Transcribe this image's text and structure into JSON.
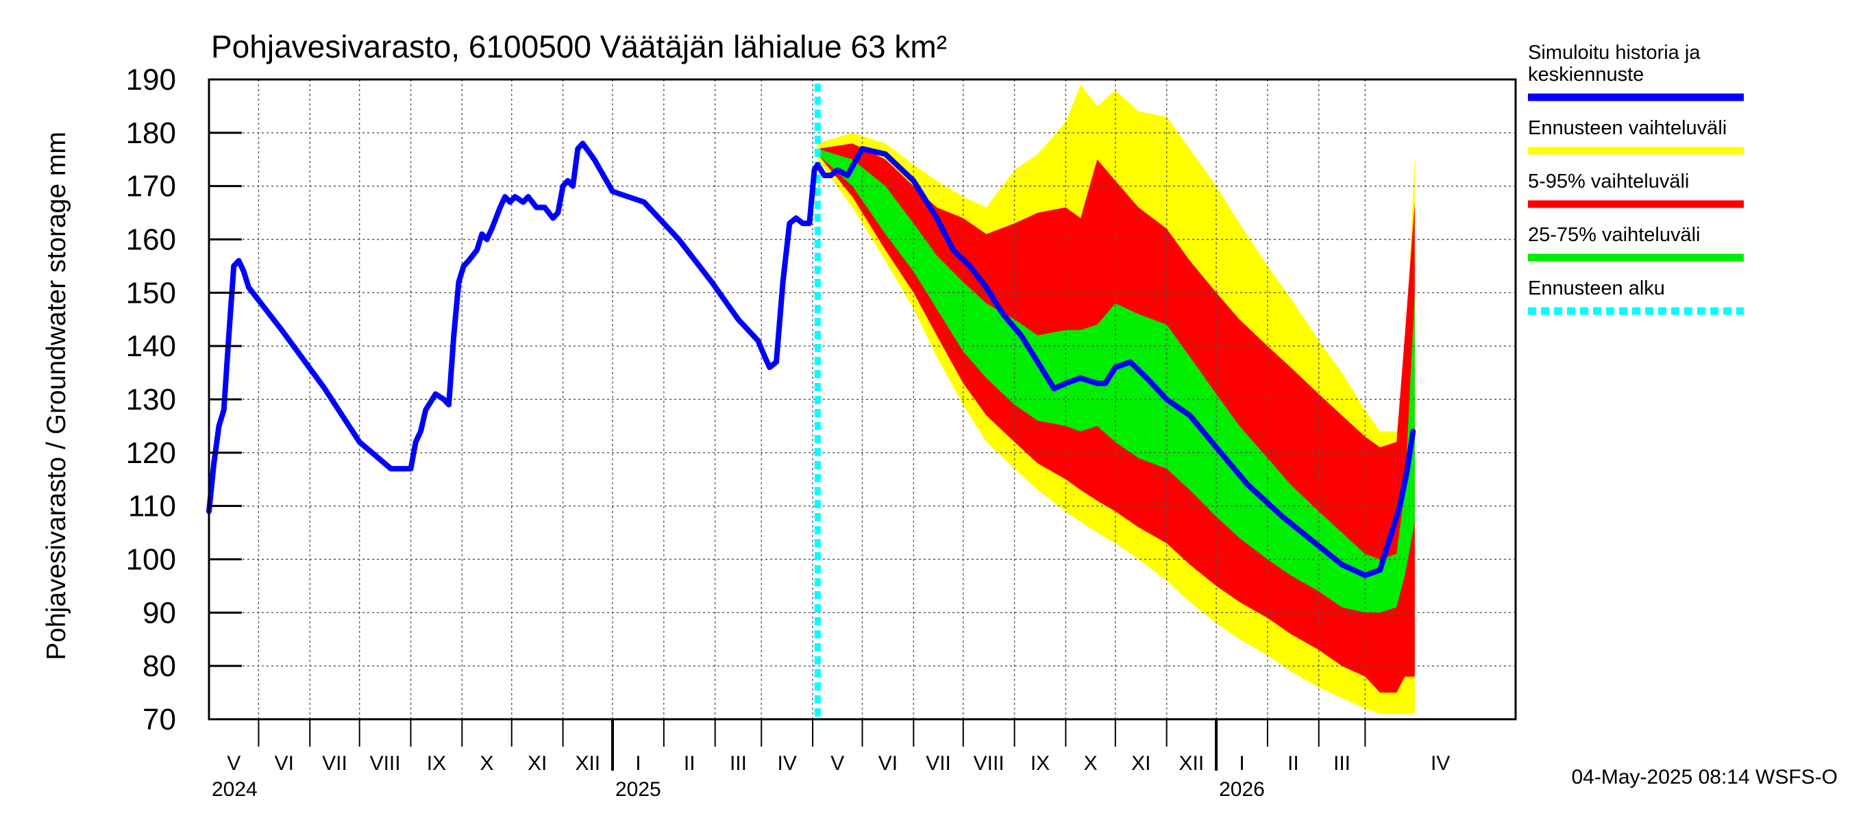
{
  "chart_data": {
    "type": "area",
    "title": "Pohjavesivarasto, 6100500 Väätäjän lähialue 63 km²",
    "ylabel": "Pohjavesivarasto / Groundwater storage   mm",
    "xlabel": "",
    "ylim": [
      70,
      190
    ],
    "yticks": [
      70,
      80,
      90,
      100,
      110,
      120,
      130,
      140,
      150,
      160,
      170,
      180,
      190
    ],
    "grid": true,
    "legend_position": "right",
    "xlim": [
      "2024-04-01",
      "2026-05-31"
    ],
    "months": [
      {
        "label": "V",
        "start": "2024-04-01"
      },
      {
        "label": "VI",
        "start": "2024-05-01"
      },
      {
        "label": "VII",
        "start": "2024-06-01"
      },
      {
        "label": "VIII",
        "start": "2024-07-01"
      },
      {
        "label": "IX",
        "start": "2024-08-01"
      },
      {
        "label": "X",
        "start": "2024-09-01"
      },
      {
        "label": "XI",
        "start": "2024-10-01"
      },
      {
        "label": "XII",
        "start": "2024-11-01"
      },
      {
        "label": "I",
        "start": "2024-12-01"
      },
      {
        "label": "II",
        "start": "2025-01-01"
      },
      {
        "label": "III",
        "start": "2025-02-01"
      },
      {
        "label": "IV",
        "start": "2025-03-01"
      },
      {
        "label": "V",
        "start": "2025-04-01"
      },
      {
        "label": "VI",
        "start": "2025-05-01"
      },
      {
        "label": "VII",
        "start": "2025-06-01"
      },
      {
        "label": "VIII",
        "start": "2025-07-01"
      },
      {
        "label": "IX",
        "start": "2025-08-01"
      },
      {
        "label": "X",
        "start": "2025-09-01"
      },
      {
        "label": "XI",
        "start": "2025-10-01"
      },
      {
        "label": "XII",
        "start": "2025-11-01"
      },
      {
        "label": "I",
        "start": "2025-12-01"
      },
      {
        "label": "II",
        "start": "2026-01-01"
      },
      {
        "label": "III",
        "start": "2026-02-01"
      },
      {
        "label": "IV",
        "start": "2026-03-01"
      }
    ],
    "year_boundaries": [
      "2024-12-01",
      "2025-12-01"
    ],
    "years": [
      {
        "label": "2024",
        "at": "2024-04-01"
      },
      {
        "label": "2025",
        "at": "2024-12-01"
      },
      {
        "label": "2026",
        "at": "2025-12-01"
      }
    ],
    "forecast_start": "2025-04-04",
    "series": [
      {
        "name": "Simuloitu historia ja keskiennuste",
        "color": "#0000ff",
        "kind": "line",
        "x": [
          "2024-04-01",
          "2024-04-04",
          "2024-04-07",
          "2024-04-10",
          "2024-04-13",
          "2024-04-16",
          "2024-04-19",
          "2024-04-22",
          "2024-04-25",
          "2024-05-15",
          "2024-06-10",
          "2024-07-01",
          "2024-07-20",
          "2024-08-01",
          "2024-08-04",
          "2024-08-07",
          "2024-08-10",
          "2024-08-16",
          "2024-08-21",
          "2024-08-24",
          "2024-08-27",
          "2024-08-30",
          "2024-09-02",
          "2024-09-05",
          "2024-09-10",
          "2024-09-13",
          "2024-09-16",
          "2024-09-19",
          "2024-09-24",
          "2024-09-27",
          "2024-09-30",
          "2024-10-03",
          "2024-10-08",
          "2024-10-11",
          "2024-10-16",
          "2024-10-21",
          "2024-10-26",
          "2024-10-29",
          "2024-11-01",
          "2024-11-04",
          "2024-11-07",
          "2024-11-10",
          "2024-11-13",
          "2024-11-20",
          "2024-12-01",
          "2024-12-20",
          "2025-01-10",
          "2025-01-30",
          "2025-02-15",
          "2025-02-27",
          "2025-03-03",
          "2025-03-06",
          "2025-03-10",
          "2025-03-14",
          "2025-03-18",
          "2025-03-22",
          "2025-03-26",
          "2025-03-30",
          "2025-04-02",
          "2025-04-04",
          "2025-04-08",
          "2025-04-12",
          "2025-04-16",
          "2025-04-22",
          "2025-05-01",
          "2025-05-15",
          "2025-06-01",
          "2025-06-15",
          "2025-06-25",
          "2025-07-05",
          "2025-07-15",
          "2025-07-25",
          "2025-08-05",
          "2025-08-15",
          "2025-08-25",
          "2025-09-01",
          "2025-09-10",
          "2025-09-20",
          "2025-09-25",
          "2025-10-01",
          "2025-10-10",
          "2025-10-20",
          "2025-11-01",
          "2025-11-15",
          "2025-12-01",
          "2025-12-20",
          "2026-01-10",
          "2026-01-30",
          "2026-02-15",
          "2026-03-01",
          "2026-03-10",
          "2026-03-14",
          "2026-03-18",
          "2026-03-22",
          "2026-03-26",
          "2026-03-30"
        ],
        "y": [
          109,
          118,
          125,
          128,
          142,
          155,
          156,
          154,
          151,
          143,
          132,
          122,
          117,
          117,
          122,
          124,
          128,
          131,
          130,
          129,
          142,
          152,
          155,
          156,
          158,
          161,
          160,
          162,
          166,
          168,
          167,
          168,
          167,
          168,
          166,
          166,
          164,
          165,
          170,
          171,
          170,
          177,
          178,
          175,
          169,
          167,
          160,
          152,
          145,
          141,
          138,
          136,
          137,
          152,
          163,
          164,
          163,
          163,
          173,
          174,
          172,
          172,
          173,
          172,
          177,
          176,
          171,
          164,
          158,
          155,
          151,
          146,
          142,
          137,
          132,
          133,
          134,
          133,
          133,
          136,
          137,
          134,
          130,
          127,
          121,
          114,
          108,
          103,
          99,
          97,
          98,
          102,
          106,
          110,
          116,
          124
        ]
      },
      {
        "name": "Ennusteen vaihteluväli",
        "color": "#ffff00",
        "kind": "band",
        "x": [
          "2025-04-04",
          "2025-04-25",
          "2025-05-15",
          "2025-06-01",
          "2025-06-15",
          "2025-07-01",
          "2025-07-15",
          "2025-08-01",
          "2025-08-15",
          "2025-09-01",
          "2025-09-10",
          "2025-09-20",
          "2025-10-01",
          "2025-10-15",
          "2025-11-01",
          "2025-11-15",
          "2025-12-01",
          "2025-12-15",
          "2026-01-01",
          "2026-01-15",
          "2026-02-01",
          "2026-02-15",
          "2026-03-01",
          "2026-03-10",
          "2026-03-20",
          "2026-03-25",
          "2026-03-31"
        ],
        "low": [
          175,
          166,
          156,
          147,
          138,
          129,
          122,
          117,
          113,
          109,
          107,
          105,
          103,
          100,
          96,
          92,
          88,
          85,
          82,
          79,
          76,
          74,
          72,
          71,
          71,
          71,
          71
        ],
        "high": [
          178,
          180,
          178,
          174,
          171,
          168,
          166,
          173,
          176,
          182,
          189,
          185,
          188,
          184,
          183,
          177,
          170,
          163,
          155,
          149,
          141,
          135,
          128,
          124,
          124,
          135,
          176
        ]
      },
      {
        "name": "5-95% vaihteluväli",
        "color": "#ff0000",
        "kind": "band",
        "x": [
          "2025-04-04",
          "2025-04-25",
          "2025-05-15",
          "2025-06-01",
          "2025-06-15",
          "2025-07-01",
          "2025-07-15",
          "2025-08-01",
          "2025-08-15",
          "2025-09-01",
          "2025-09-10",
          "2025-09-20",
          "2025-10-01",
          "2025-10-15",
          "2025-11-01",
          "2025-11-15",
          "2025-12-01",
          "2025-12-15",
          "2026-01-01",
          "2026-01-15",
          "2026-02-01",
          "2026-02-15",
          "2026-03-01",
          "2026-03-10",
          "2026-03-20",
          "2026-03-25",
          "2026-03-31"
        ],
        "low": [
          176,
          168,
          158,
          150,
          142,
          133,
          127,
          122,
          118,
          115,
          113,
          111,
          109,
          106,
          103,
          99,
          95,
          92,
          89,
          86,
          83,
          80,
          78,
          75,
          75,
          78,
          78
        ],
        "high": [
          177,
          178,
          175,
          170,
          166,
          164,
          161,
          163,
          165,
          166,
          164,
          175,
          171,
          166,
          162,
          156,
          150,
          145,
          140,
          136,
          131,
          127,
          123,
          121,
          122,
          142,
          167
        ]
      },
      {
        "name": "25-75% vaihteluväli",
        "color": "#00ee00",
        "kind": "band",
        "x": [
          "2025-04-04",
          "2025-04-25",
          "2025-05-15",
          "2025-06-01",
          "2025-06-15",
          "2025-07-01",
          "2025-07-15",
          "2025-08-01",
          "2025-08-15",
          "2025-09-01",
          "2025-09-10",
          "2025-09-20",
          "2025-10-01",
          "2025-10-15",
          "2025-11-01",
          "2025-11-15",
          "2025-12-01",
          "2025-12-15",
          "2026-01-01",
          "2026-01-15",
          "2026-02-01",
          "2026-02-15",
          "2026-03-01",
          "2026-03-10",
          "2026-03-20",
          "2026-03-25",
          "2026-03-31"
        ],
        "low": [
          176,
          170,
          161,
          154,
          147,
          139,
          134,
          129,
          126,
          125,
          124,
          125,
          122,
          119,
          117,
          113,
          108,
          104,
          100,
          97,
          94,
          91,
          90,
          90,
          91,
          97,
          107
        ],
        "high": [
          177,
          175,
          170,
          163,
          157,
          152,
          148,
          145,
          142,
          143,
          143,
          144,
          148,
          146,
          144,
          138,
          131,
          125,
          119,
          114,
          109,
          105,
          101,
          100,
          101,
          113,
          150
        ]
      },
      {
        "name": "Ennusteen alku",
        "color": "#00ffff",
        "kind": "vline"
      }
    ]
  },
  "footer": "04-May-2025 08:14 WSFS-O",
  "legend_items": [
    {
      "text": "Simuloitu historia ja keskiennuste",
      "color": "#0000ff",
      "style": "line"
    },
    {
      "text": "Ennusteen vaihteluväli",
      "color": "#ffff00",
      "style": "line"
    },
    {
      "text": "5-95% vaihteluväli",
      "color": "#ff0000",
      "style": "line"
    },
    {
      "text": "25-75% vaihteluväli",
      "color": "#00ee00",
      "style": "line"
    },
    {
      "text": "Ennusteen alku",
      "color": "#00ffff",
      "style": "dashed"
    }
  ]
}
